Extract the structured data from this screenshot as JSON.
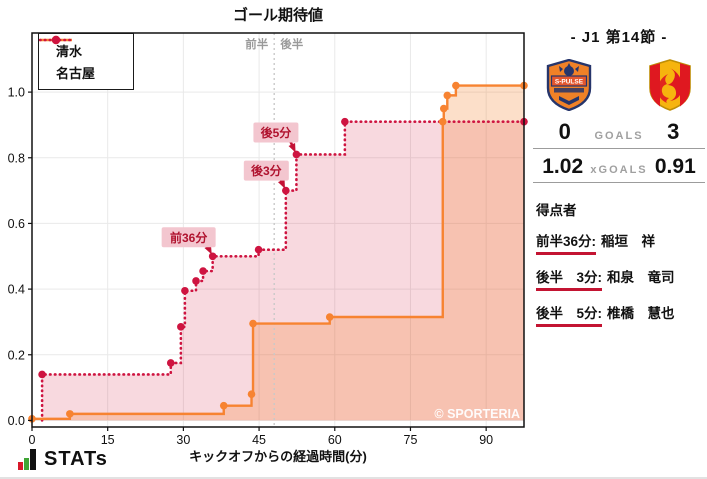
{
  "chart_data": {
    "type": "line",
    "subtype": "step-after-xg-race",
    "title": "ゴール期待値",
    "xlabel": "キックオフからの経過時間(分)",
    "xlim": [
      0,
      97.5
    ],
    "ylim": [
      -0.02,
      1.18
    ],
    "xticks": [
      "0",
      "15",
      "30",
      "45",
      "60",
      "75",
      "90"
    ],
    "yticks": [
      "0.0",
      "0.2",
      "0.4",
      "0.6",
      "0.8",
      "1.0"
    ],
    "grid": true,
    "legend_position": "top-left",
    "half_line_x": 48,
    "half_labels": [
      "前半",
      "後半"
    ],
    "watermark": "© SPORTERIA",
    "series": [
      {
        "name": "清水",
        "color": "#F78331",
        "style": "solid",
        "fill": "rgba(245,126,40,0.25)",
        "final_xg": 1.02,
        "points": [
          [
            0,
            0.005
          ],
          [
            7.5,
            0.02
          ],
          [
            38,
            0.045
          ],
          [
            43.5,
            0.08
          ],
          [
            43.8,
            0.295
          ],
          [
            59,
            0.315
          ],
          [
            81.4,
            0.91
          ],
          [
            81.6,
            0.95
          ],
          [
            82.3,
            0.99
          ],
          [
            84,
            1.02
          ]
        ],
        "end_x": 97.5
      },
      {
        "name": "名古屋",
        "color": "#CE1440",
        "style": "dotted",
        "fill": "rgba(211,32,66,0.17)",
        "final_xg": 0.91,
        "start_y": 0,
        "points": [
          [
            2,
            0.14
          ],
          [
            27.5,
            0.175
          ],
          [
            29.5,
            0.285
          ],
          [
            30.3,
            0.395
          ],
          [
            32.5,
            0.425
          ],
          [
            33.9,
            0.455
          ],
          [
            35.8,
            0.5
          ],
          [
            44.9,
            0.52
          ],
          [
            50.3,
            0.7
          ],
          [
            52.4,
            0.81
          ],
          [
            62,
            0.91
          ]
        ],
        "end_x": 97.5
      }
    ],
    "annotations": [
      {
        "label": "前36分",
        "x": 35.8,
        "y": 0.5,
        "box_offset": [
          -51,
          -29
        ],
        "box_size": [
          54,
          20
        ]
      },
      {
        "label": "後3分",
        "x": 50.3,
        "y": 0.7,
        "box_offset": [
          -42,
          -30
        ],
        "box_size": [
          45,
          20
        ]
      },
      {
        "label": "後5分",
        "x": 52.4,
        "y": 0.81,
        "box_offset": [
          -43,
          -32
        ],
        "box_size": [
          45,
          20
        ]
      }
    ],
    "annotation_colors": {
      "bg": "#F3C6CF",
      "text": "#B0122E",
      "arrow": "#C41236"
    }
  },
  "match": {
    "title": "- J1 第14節 -",
    "home_team": {
      "name": "清水",
      "logo": "shimizu-s-pulse"
    },
    "away_team": {
      "name": "名古屋",
      "logo": "nagoya-grampus"
    },
    "goals": {
      "home": "0",
      "label": "GOALS",
      "away": "3"
    },
    "xgoals": {
      "home": "1.02",
      "label": "xGOALS",
      "away": "0.91"
    },
    "scorers": {
      "heading": "得点者",
      "underline_color": "#C31432",
      "items": [
        {
          "time": "前半36分:",
          "name": "稲垣　祥"
        },
        {
          "time": "後半　3分:",
          "name": "和泉　竜司"
        },
        {
          "time": "後半　5分:",
          "name": "椎橋　慧也"
        }
      ]
    }
  },
  "footer": {
    "brand": "STATs"
  }
}
